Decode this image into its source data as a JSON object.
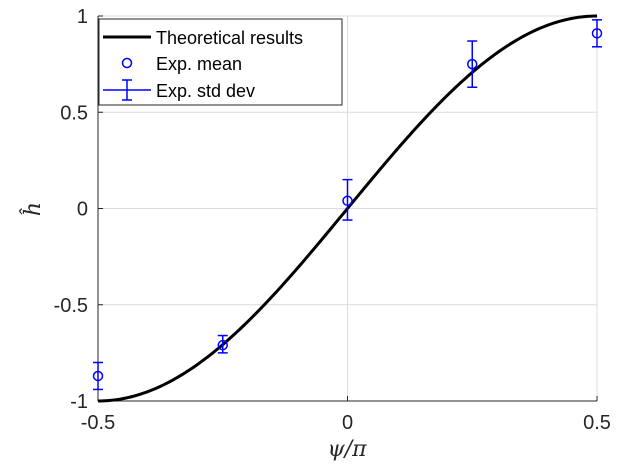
{
  "chart_data": {
    "type": "line",
    "xlabel": "ψ/π",
    "ylabel": "ĥ",
    "xlim": [
      -0.5,
      0.5
    ],
    "ylim": [
      -1,
      1
    ],
    "x_ticks": [
      -0.5,
      0,
      0.5
    ],
    "x_tick_labels": [
      "-0.5",
      "0",
      "0.5"
    ],
    "y_ticks": [
      -1,
      -0.5,
      0,
      0.5,
      1
    ],
    "y_tick_labels": [
      "-1",
      "-0.5",
      "0",
      "0.5",
      "1"
    ],
    "grid": true,
    "legend_position": "top-left",
    "series": [
      {
        "name": "Theoretical results",
        "kind": "line",
        "function": "sin(pi * x)",
        "color": "#000000"
      },
      {
        "name": "Exp. mean",
        "kind": "scatter",
        "marker": "circle",
        "color": "#0000ff",
        "x": [
          -0.5,
          -0.25,
          0,
          0.25,
          0.5
        ],
        "y": [
          -0.87,
          -0.71,
          0.04,
          0.75,
          0.91
        ]
      },
      {
        "name": "Exp. std dev",
        "kind": "errorbar",
        "color": "#0000ff",
        "x": [
          -0.5,
          -0.25,
          0,
          0.25,
          0.5
        ],
        "y_low": [
          -0.94,
          -0.75,
          -0.06,
          0.63,
          0.84
        ],
        "y_high": [
          -0.8,
          -0.66,
          0.15,
          0.87,
          0.98
        ]
      }
    ]
  }
}
